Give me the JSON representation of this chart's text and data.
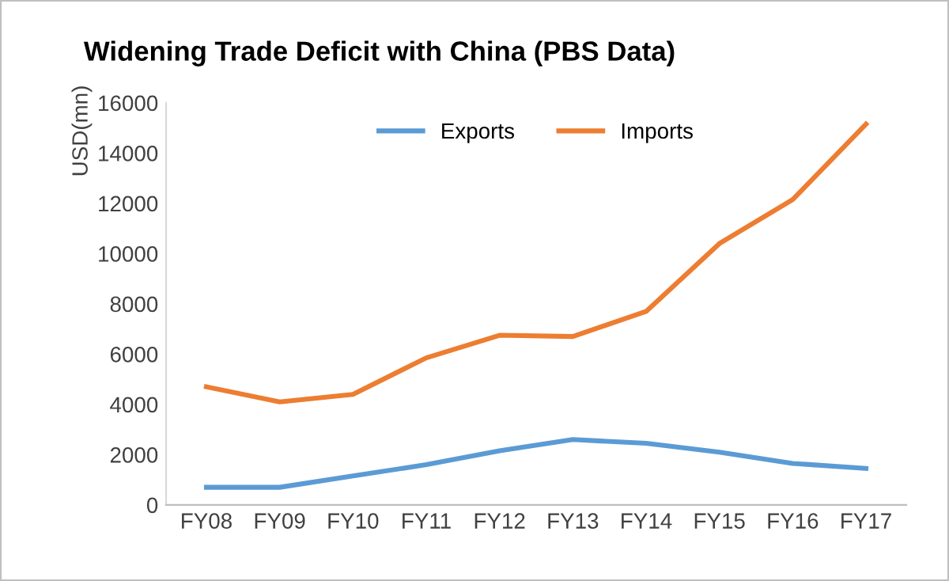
{
  "chart_data": {
    "type": "line",
    "title": "Widening Trade Deficit with China (PBS Data)",
    "ylabel": "USD(mn)",
    "categories": [
      "FY08",
      "FY09",
      "FY10",
      "FY11",
      "FY12",
      "FY13",
      "FY14",
      "FY15",
      "FY16",
      "FY17"
    ],
    "series": [
      {
        "name": "Exports",
        "color": "#5b9bd5",
        "values": [
          700,
          700,
          1150,
          1600,
          2150,
          2600,
          2450,
          2100,
          1650,
          1450
        ]
      },
      {
        "name": "Imports",
        "color": "#ed7d31",
        "values": [
          4700,
          4100,
          4400,
          5850,
          6750,
          6700,
          7700,
          10400,
          12150,
          15150
        ]
      }
    ],
    "ylim": [
      0,
      16000
    ],
    "yticks": [
      0,
      2000,
      4000,
      6000,
      8000,
      10000,
      12000,
      14000,
      16000
    ],
    "grid": false,
    "legend": "top",
    "marker": "none",
    "line_style": "solid"
  }
}
